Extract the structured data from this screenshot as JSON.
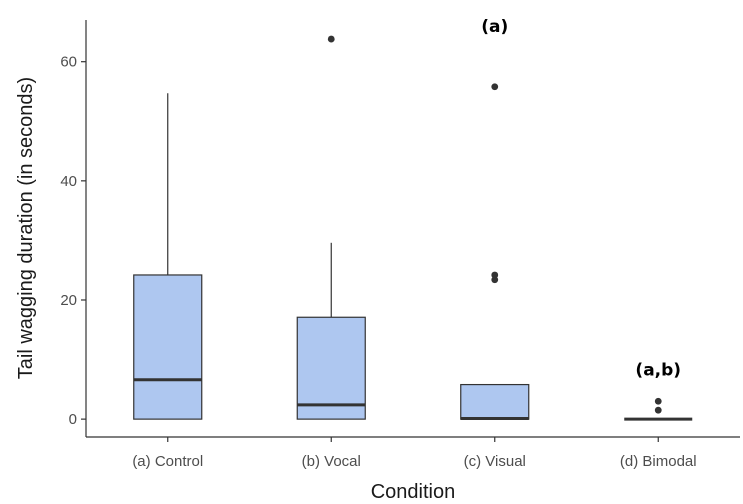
{
  "chart_data": {
    "type": "boxplot",
    "title": "",
    "xlabel": "Condition",
    "ylabel": "Tail wagging duration (in seconds)",
    "ylim": [
      -3,
      67
    ],
    "y_ticks": [
      0,
      20,
      40,
      60
    ],
    "grid": false,
    "categories": [
      "(a) Control",
      "(b) Vocal",
      "(c) Visual",
      "(d) Bimodal"
    ],
    "boxes": [
      {
        "category": "(a) Control",
        "whisker_low": 0,
        "q1": 0,
        "median": 6.6,
        "q3": 24.2,
        "whisker_high": 54.7,
        "outliers": []
      },
      {
        "category": "(b) Vocal",
        "whisker_low": 0,
        "q1": 0,
        "median": 2.4,
        "q3": 17.1,
        "whisker_high": 29.6,
        "outliers": [
          63.8
        ]
      },
      {
        "category": "(c) Visual",
        "whisker_low": 0,
        "q1": 0,
        "median": 0.1,
        "q3": 5.8,
        "whisker_high": 5.8,
        "outliers": [
          23.4,
          24.2,
          55.8
        ]
      },
      {
        "category": "(d) Bimodal",
        "whisker_low": 0,
        "q1": 0,
        "median": 0,
        "q3": 0,
        "whisker_high": 0,
        "outliers": [
          1.5,
          3.0
        ]
      }
    ],
    "annotations": [
      {
        "category": "(c) Visual",
        "text": "(a)",
        "y": 66
      },
      {
        "category": "(d) Bimodal",
        "text": "(a,b)",
        "y": 8.3
      }
    ],
    "colors": {
      "box_fill": "#aec7f0",
      "box_stroke": "#333333",
      "outlier": "#333333",
      "axis": "#333333"
    }
  }
}
